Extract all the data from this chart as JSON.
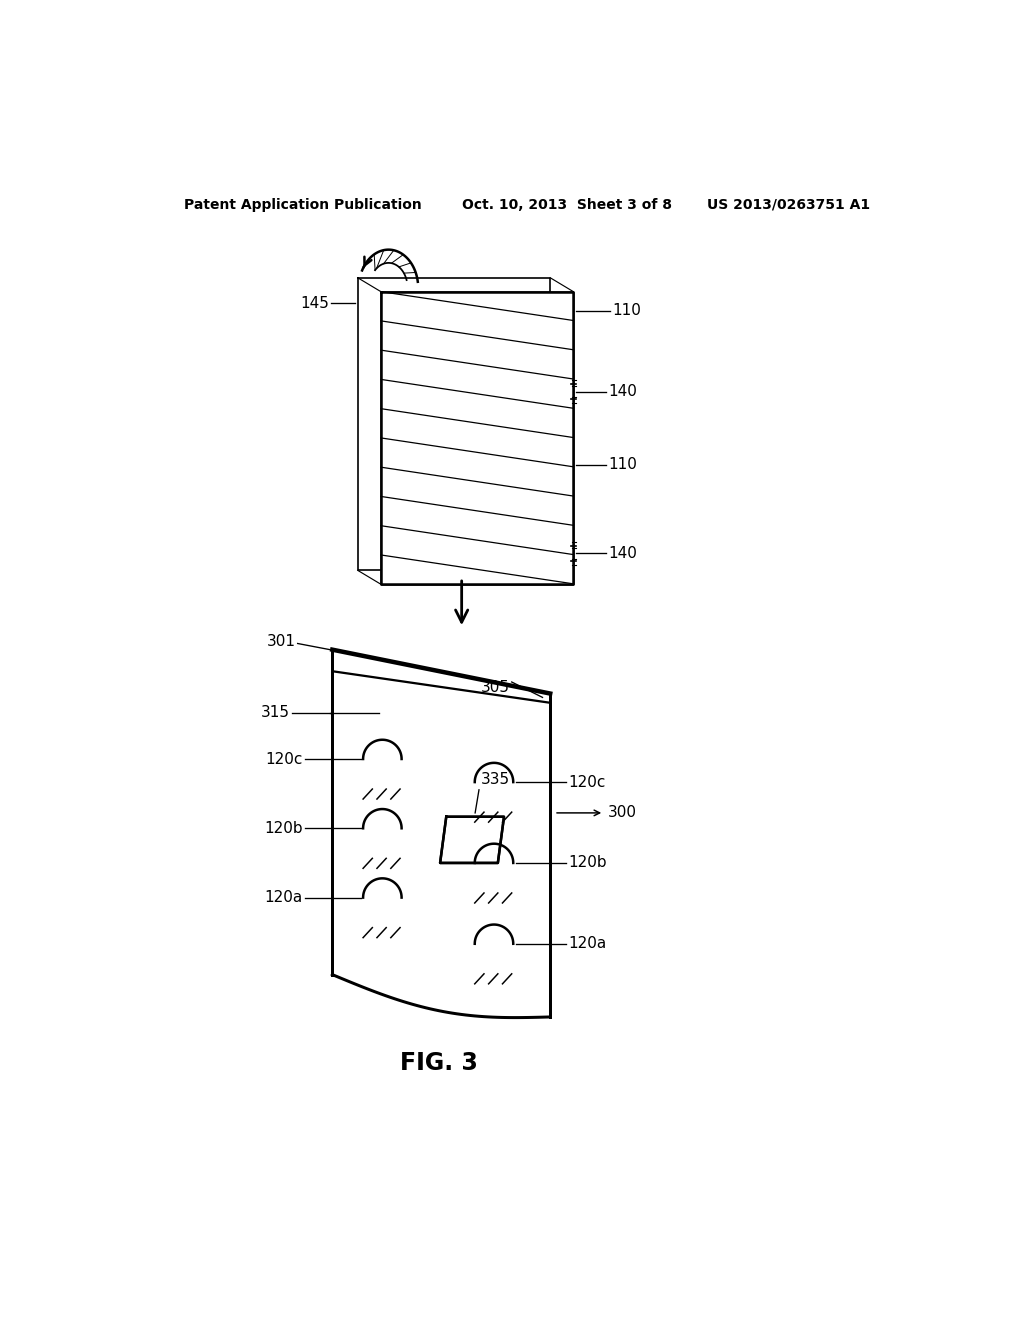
{
  "bg_color": "#ffffff",
  "header_left": "Patent Application Publication",
  "header_center": "Oct. 10, 2013  Sheet 3 of 8",
  "header_right": "US 2013/0263751 A1",
  "fig_label": "FIG. 3",
  "lw": 1.8,
  "lw_thin": 1.2
}
